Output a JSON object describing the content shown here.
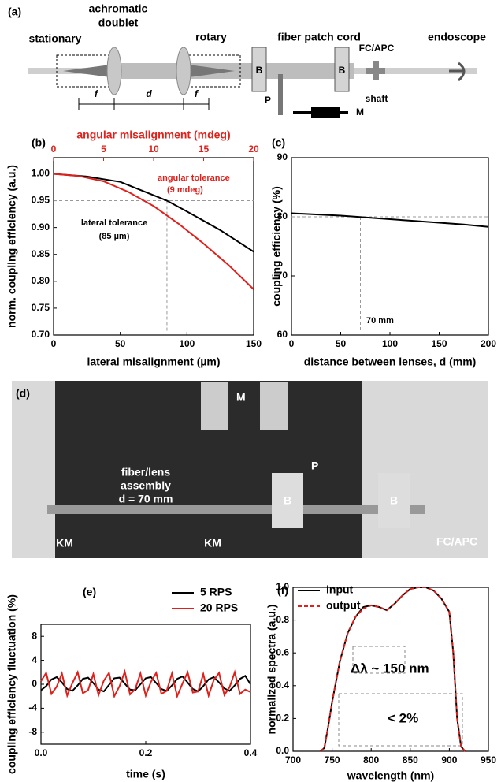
{
  "diagram": {
    "panel": "(a)",
    "labels": [
      "stationary",
      "achromatic",
      "doublet",
      "rotary",
      "fiber patch cord",
      "FC/APC",
      "endoscope",
      "B",
      "B",
      "P",
      "M",
      "shaft",
      "f",
      "d",
      "f"
    ]
  },
  "photo": {
    "panel": "(d)",
    "labels": [
      "M",
      "P",
      "fiber/lens",
      "assembly",
      "d = 70 mm",
      "B",
      "B",
      "KM",
      "KM",
      "FC/APC"
    ]
  },
  "chart_data": [
    {
      "type": "line",
      "panel": "(b)",
      "x2label": "angular misalignment (mdeg)",
      "ylabel": "norm. coupling efficiency (a.u.)",
      "xlabel": "lateral misalignment (µm)",
      "xlim": [
        0,
        150
      ],
      "xticks": [
        0,
        50,
        100,
        150
      ],
      "x2lim": [
        0,
        20
      ],
      "x2ticks": [
        0,
        5,
        10,
        15,
        20
      ],
      "x2color": "#e0201b",
      "ylim": [
        0.7,
        1.03
      ],
      "yticks": [
        {
          "value": 0.7,
          "label": "0.70"
        },
        {
          "value": 0.75,
          "label": "0.75"
        },
        {
          "value": 0.8,
          "label": "0.80"
        },
        {
          "value": 0.85,
          "label": "0.85"
        },
        {
          "value": 0.9,
          "label": "0.90"
        },
        {
          "value": 0.95,
          "label": "0.95"
        },
        {
          "value": 1.0,
          "label": "1.00"
        }
      ],
      "series": [
        {
          "color": "#000000",
          "x": [
            0,
            25,
            50,
            75,
            85,
            100,
            125,
            150
          ],
          "values": [
            1.0,
            0.995,
            0.985,
            0.96,
            0.95,
            0.93,
            0.895,
            0.855
          ]
        },
        {
          "color": "#e0201b",
          "axis": "x2",
          "x": [
            0,
            2.5,
            5,
            7.5,
            10,
            12.5,
            15,
            17.5,
            20
          ],
          "values": [
            1.0,
            0.996,
            0.986,
            0.966,
            0.94,
            0.907,
            0.87,
            0.83,
            0.785
          ]
        }
      ],
      "guides": {
        "x": 85,
        "y": 0.95
      },
      "annotations": [
        {
          "text": "angular tolerance",
          "color": "#e0201b"
        },
        {
          "text": "(9 mdeg)",
          "color": "#e0201b"
        },
        {
          "text": "lateral tolerance",
          "color": "#000000"
        },
        {
          "text": "(85 µm)",
          "color": "#000000"
        }
      ]
    },
    {
      "type": "line",
      "panel": "(c)",
      "ylabel": "coupling efficiency (%)",
      "xlabel": "distance between lenses, d (mm)",
      "xlim": [
        0,
        200
      ],
      "xticks": [
        0,
        50,
        100,
        150,
        200
      ],
      "ylim": [
        60,
        90
      ],
      "yticks": [
        60,
        70,
        80,
        90
      ],
      "series": [
        {
          "color": "#000000",
          "x": [
            0,
            25,
            50,
            75,
            100,
            125,
            150,
            175,
            200
          ],
          "values": [
            80.6,
            80.4,
            80.2,
            79.9,
            79.6,
            79.3,
            79.0,
            78.7,
            78.3
          ]
        }
      ],
      "guides": {
        "x": 70,
        "y": 80
      },
      "annotations": [
        {
          "text": "70 mm",
          "color": "#000000"
        }
      ]
    },
    {
      "type": "line",
      "panel": "(e)",
      "ylabel": "coupling efficiency fluctuation (%)",
      "xlabel": "time (s)",
      "legend": "top-right",
      "xlim": [
        0,
        0.4
      ],
      "xticks": [
        {
          "value": 0,
          "label": "0.0"
        },
        0.2,
        0.4
      ],
      "ylim": [
        -10,
        10
      ],
      "yticks": [
        -8,
        -4,
        0,
        4,
        8
      ],
      "x": [
        0,
        0.01,
        0.02,
        0.03,
        0.04,
        0.05,
        0.06,
        0.07,
        0.08,
        0.09,
        0.1,
        0.11,
        0.12,
        0.13,
        0.14,
        0.15,
        0.16,
        0.17,
        0.18,
        0.19,
        0.2,
        0.21,
        0.22,
        0.23,
        0.24,
        0.25,
        0.26,
        0.27,
        0.28,
        0.29,
        0.3,
        0.31,
        0.32,
        0.33,
        0.34,
        0.35,
        0.36,
        0.37,
        0.38,
        0.39,
        0.4
      ],
      "series": [
        {
          "name": "5 RPS",
          "color": "#000000",
          "values": [
            -1.0,
            -0.3,
            0.8,
            1.2,
            0.3,
            -0.8,
            -1.1,
            -0.2,
            0.9,
            1.1,
            0.2,
            -0.9,
            -1.2,
            -0.1,
            1.0,
            1.1,
            0.1,
            -0.9,
            -1.0,
            0.0,
            1.0,
            1.2,
            0.2,
            -0.8,
            -1.1,
            -0.2,
            0.9,
            1.3,
            0.3,
            -0.8,
            -1.2,
            -0.3,
            0.8,
            1.2,
            0.3,
            -0.7,
            -1.1,
            -0.2,
            0.9,
            1.4,
            0.0
          ]
        },
        {
          "name": "20 RPS",
          "color": "#e0201b",
          "values": [
            0.5,
            1.9,
            -1.6,
            -0.4,
            1.8,
            -1.9,
            0.2,
            2.0,
            -1.5,
            -1.0,
            1.7,
            -1.8,
            0.6,
            1.9,
            -2.0,
            -0.3,
            2.1,
            -1.7,
            -0.8,
            1.8,
            -1.9,
            0.4,
            1.9,
            -1.6,
            -1.1,
            1.8,
            -2.0,
            0.1,
            2.0,
            -1.4,
            -1.2,
            1.7,
            -1.9,
            0.7,
            1.9,
            -1.8,
            -0.5,
            2.0,
            -1.6,
            -0.9,
            -1.3
          ]
        }
      ]
    },
    {
      "type": "line",
      "panel": "(f)",
      "ylabel": "normalized spectra (a.u.)",
      "xlabel": "wavelength (nm)",
      "legend": "top-left",
      "xlim": [
        700,
        950
      ],
      "xticks": [
        700,
        750,
        800,
        850,
        900,
        950
      ],
      "ylim": [
        0,
        1
      ],
      "yticks": [
        {
          "value": 0,
          "label": "0.0"
        },
        0.2,
        0.4,
        0.6,
        0.8,
        {
          "value": 1,
          "label": "1.0"
        }
      ],
      "x": [
        735,
        740,
        745,
        750,
        760,
        770,
        780,
        790,
        800,
        810,
        820,
        830,
        840,
        850,
        860,
        870,
        880,
        890,
        900,
        905,
        910,
        915,
        920
      ],
      "series": [
        {
          "name": "input",
          "color": "#000000",
          "values": [
            0,
            0.02,
            0.15,
            0.3,
            0.55,
            0.72,
            0.82,
            0.88,
            0.89,
            0.88,
            0.86,
            0.9,
            0.95,
            0.99,
            1.0,
            1.0,
            0.98,
            0.93,
            0.85,
            0.6,
            0.2,
            0.03,
            0
          ]
        },
        {
          "name": "output",
          "color": "#e0201b",
          "dash": true,
          "values": [
            0,
            0.02,
            0.15,
            0.3,
            0.55,
            0.72,
            0.82,
            0.87,
            0.89,
            0.88,
            0.86,
            0.9,
            0.95,
            0.99,
            1.0,
            1.0,
            0.98,
            0.93,
            0.85,
            0.6,
            0.2,
            0.03,
            0
          ]
        }
      ],
      "annotations": [
        {
          "text": "Δλ ~ 150 nm",
          "color": "#000000"
        },
        {
          "text": "< 2%",
          "color": "#000000"
        }
      ]
    }
  ]
}
